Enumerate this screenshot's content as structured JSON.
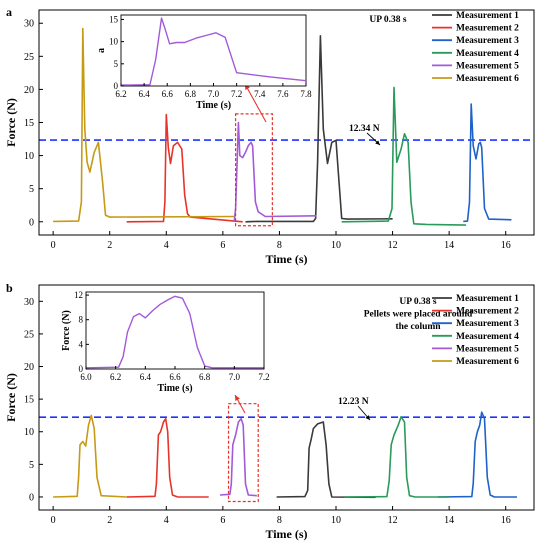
{
  "figure": {
    "panel_labels": [
      "a",
      "b"
    ],
    "colors": {
      "Measurement 1": "#3a3a3a",
      "Measurement 2": "#e8332b",
      "Measurement 3": "#1f62c9",
      "Measurement 4": "#2a9a5c",
      "Measurement 5": "#a35ad9",
      "Measurement 6": "#c79a16",
      "threshold": "#1f33ff",
      "highlight": "#e8332b"
    }
  },
  "chart_data": [
    {
      "type": "line",
      "panel": "a",
      "xlabel": "Time (s)",
      "ylabel": "Force (N)",
      "xlim": [
        -0.5,
        17
      ],
      "ylim": [
        -2,
        32
      ],
      "xticks": [
        0,
        2,
        4,
        6,
        8,
        10,
        12,
        14,
        16
      ],
      "yticks": [
        0,
        5,
        10,
        15,
        20,
        25,
        30
      ],
      "annotation_title": "UP  0.38 s",
      "threshold": {
        "value": 12.34,
        "label": "12.34 N"
      },
      "legend_position": "top-right",
      "highlight_box": {
        "x": [
          6.45,
          7.75
        ],
        "y": [
          -0.6,
          16.3
        ]
      },
      "series": [
        {
          "name": "Measurement 1",
          "x": [
            6.8,
            7.2,
            9.2,
            9.28,
            9.35,
            9.45,
            9.55,
            9.7,
            9.85,
            10.0,
            10.08,
            10.2,
            10.4,
            12.0
          ],
          "y": [
            0.0,
            0.05,
            0.05,
            0.5,
            9.0,
            28.1,
            14.0,
            8.8,
            12.0,
            12.3,
            7.5,
            0.5,
            0.4,
            0.45
          ]
        },
        {
          "name": "Measurement 2",
          "x": [
            2.6,
            3.9,
            3.95,
            4.0,
            4.07,
            4.15,
            4.25,
            4.4,
            4.55,
            4.65,
            4.75,
            4.85,
            6.7
          ],
          "y": [
            0.0,
            0.05,
            3.0,
            16.2,
            11.2,
            8.8,
            11.5,
            12.0,
            11.0,
            4.0,
            1.2,
            0.7,
            0.0
          ]
        },
        {
          "name": "Measurement 3",
          "x": [
            14.5,
            14.65,
            14.72,
            14.78,
            14.85,
            14.95,
            15.05,
            15.1,
            15.15,
            15.25,
            15.4,
            16.2
          ],
          "y": [
            0.05,
            0.1,
            3.0,
            17.8,
            11.5,
            9.5,
            11.8,
            12.0,
            11.2,
            2.0,
            0.4,
            0.3
          ]
        },
        {
          "name": "Measurement 4",
          "x": [
            10.2,
            11.85,
            11.98,
            12.05,
            12.15,
            12.3,
            12.42,
            12.55,
            12.65,
            12.75,
            13.2,
            14.6
          ],
          "y": [
            0.0,
            0.1,
            2.0,
            20.3,
            9.0,
            11.0,
            13.3,
            12.0,
            3.0,
            -0.3,
            -0.4,
            -0.5
          ]
        },
        {
          "name": "Measurement 5",
          "x": [
            6.4,
            6.45,
            6.55,
            6.6,
            6.7,
            6.8,
            6.9,
            7.0,
            7.05,
            7.15,
            7.25,
            7.5,
            9.3
          ],
          "y": [
            0.0,
            2.0,
            15.0,
            10.0,
            9.7,
            10.5,
            11.5,
            12.0,
            11.5,
            3.0,
            1.5,
            0.8,
            0.9
          ]
        },
        {
          "name": "Measurement 6",
          "x": [
            0.0,
            0.9,
            1.0,
            1.05,
            1.12,
            1.2,
            1.3,
            1.45,
            1.6,
            1.75,
            1.85,
            2.0,
            6.4
          ],
          "y": [
            0.05,
            0.1,
            3.0,
            29.2,
            14.0,
            9.0,
            7.5,
            10.5,
            12.0,
            6.0,
            1.0,
            0.7,
            0.8
          ]
        }
      ],
      "inset": {
        "xlabel": "Time (s)",
        "ylabel": "a",
        "xlim": [
          6.2,
          7.8
        ],
        "ylim": [
          0,
          16
        ],
        "xticks": [
          "6.2",
          "6.4",
          "6.6",
          "6.8",
          "7.0",
          "7.2",
          "7.4",
          "7.6",
          "7.8"
        ],
        "yticks": [
          0,
          5,
          10,
          15
        ],
        "series_name": "Measurement 5",
        "x": [
          6.2,
          6.45,
          6.47,
          6.5,
          6.55,
          6.58,
          6.62,
          6.68,
          6.75,
          6.85,
          6.95,
          7.02,
          7.1,
          7.2,
          7.5,
          7.8
        ],
        "y": [
          0.2,
          0.3,
          2.5,
          6.0,
          15.3,
          13.0,
          9.5,
          9.8,
          9.8,
          10.8,
          11.5,
          12.0,
          11.0,
          3.0,
          2.0,
          1.2
        ]
      }
    },
    {
      "type": "line",
      "panel": "b",
      "xlabel": "Time (s)",
      "ylabel": "Force (N)",
      "xlim": [
        -0.5,
        17
      ],
      "ylim": [
        -2,
        32.5
      ],
      "xticks": [
        0,
        2,
        4,
        6,
        8,
        10,
        12,
        14,
        16
      ],
      "yticks": [
        0,
        5,
        10,
        15,
        20,
        25,
        30
      ],
      "annotation_title": "UP  0.38 s",
      "annotation_lines": [
        "Pellets were placed around",
        "the column"
      ],
      "threshold": {
        "value": 12.23,
        "label": "12.23 N"
      },
      "legend_position": "top-right",
      "highlight_box": {
        "x": [
          6.2,
          7.25
        ],
        "y": [
          -0.7,
          14.3
        ]
      },
      "series": [
        {
          "name": "Measurement 1",
          "x": [
            7.9,
            8.9,
            9.0,
            9.05,
            9.12,
            9.2,
            9.35,
            9.55,
            9.65,
            9.75,
            9.85,
            11.4
          ],
          "y": [
            0.0,
            0.05,
            1.0,
            7.5,
            8.8,
            10.5,
            11.2,
            11.5,
            8.0,
            2.0,
            0.0,
            -0.05
          ]
        },
        {
          "name": "Measurement 2",
          "x": [
            2.6,
            3.6,
            3.65,
            3.72,
            3.8,
            3.9,
            3.98,
            4.05,
            4.12,
            4.22,
            4.4,
            5.5
          ],
          "y": [
            0.0,
            0.1,
            2.0,
            9.5,
            10.0,
            11.5,
            12.0,
            10.0,
            3.0,
            0.3,
            0.0,
            0.0
          ]
        },
        {
          "name": "Measurement 3",
          "x": [
            13.6,
            14.8,
            14.85,
            14.92,
            15.0,
            15.08,
            15.15,
            15.25,
            15.35,
            15.45,
            15.6,
            16.4
          ],
          "y": [
            0.0,
            0.05,
            2.0,
            8.5,
            10.0,
            11.0,
            13.0,
            12.0,
            3.0,
            0.3,
            0.0,
            0.0
          ]
        },
        {
          "name": "Measurement 4",
          "x": [
            10.3,
            11.8,
            11.88,
            11.95,
            12.05,
            12.2,
            12.3,
            12.42,
            12.5,
            12.6,
            12.8,
            14.0
          ],
          "y": [
            0.0,
            0.05,
            2.5,
            8.0,
            9.5,
            11.0,
            12.3,
            11.5,
            3.0,
            0.2,
            0.0,
            0.0
          ]
        },
        {
          "name": "Measurement 5",
          "x": [
            5.9,
            6.25,
            6.3,
            6.35,
            6.45,
            6.55,
            6.65,
            6.72,
            6.8,
            6.9,
            7.2
          ],
          "y": [
            0.3,
            0.4,
            2.0,
            8.0,
            9.5,
            11.5,
            12.0,
            11.0,
            2.0,
            0.3,
            0.2
          ]
        },
        {
          "name": "Measurement 6",
          "x": [
            0.0,
            0.85,
            0.9,
            0.95,
            1.05,
            1.15,
            1.25,
            1.35,
            1.45,
            1.55,
            1.7,
            2.6
          ],
          "y": [
            0.0,
            0.1,
            3.0,
            8.0,
            8.5,
            7.8,
            11.0,
            12.5,
            10.5,
            3.0,
            0.2,
            0.0
          ]
        }
      ],
      "inset": {
        "xlabel": "Time (s)",
        "ylabel": "Force (N)",
        "xlim": [
          6.0,
          7.2
        ],
        "ylim": [
          0,
          12.5
        ],
        "xticks": [
          "6.0",
          "6.2",
          "6.4",
          "6.6",
          "6.8",
          "7.0",
          "7.2"
        ],
        "yticks": [
          0,
          4,
          8,
          12
        ],
        "series_name": "Measurement 5",
        "x": [
          6.0,
          6.22,
          6.25,
          6.28,
          6.32,
          6.36,
          6.4,
          6.45,
          6.5,
          6.55,
          6.6,
          6.65,
          6.7,
          6.75,
          6.8,
          6.85,
          7.2
        ],
        "y": [
          0.2,
          0.3,
          2.0,
          6.0,
          8.5,
          9.0,
          8.3,
          9.5,
          10.5,
          11.2,
          11.8,
          11.5,
          9.0,
          3.5,
          0.5,
          0.2,
          0.2
        ]
      }
    }
  ]
}
